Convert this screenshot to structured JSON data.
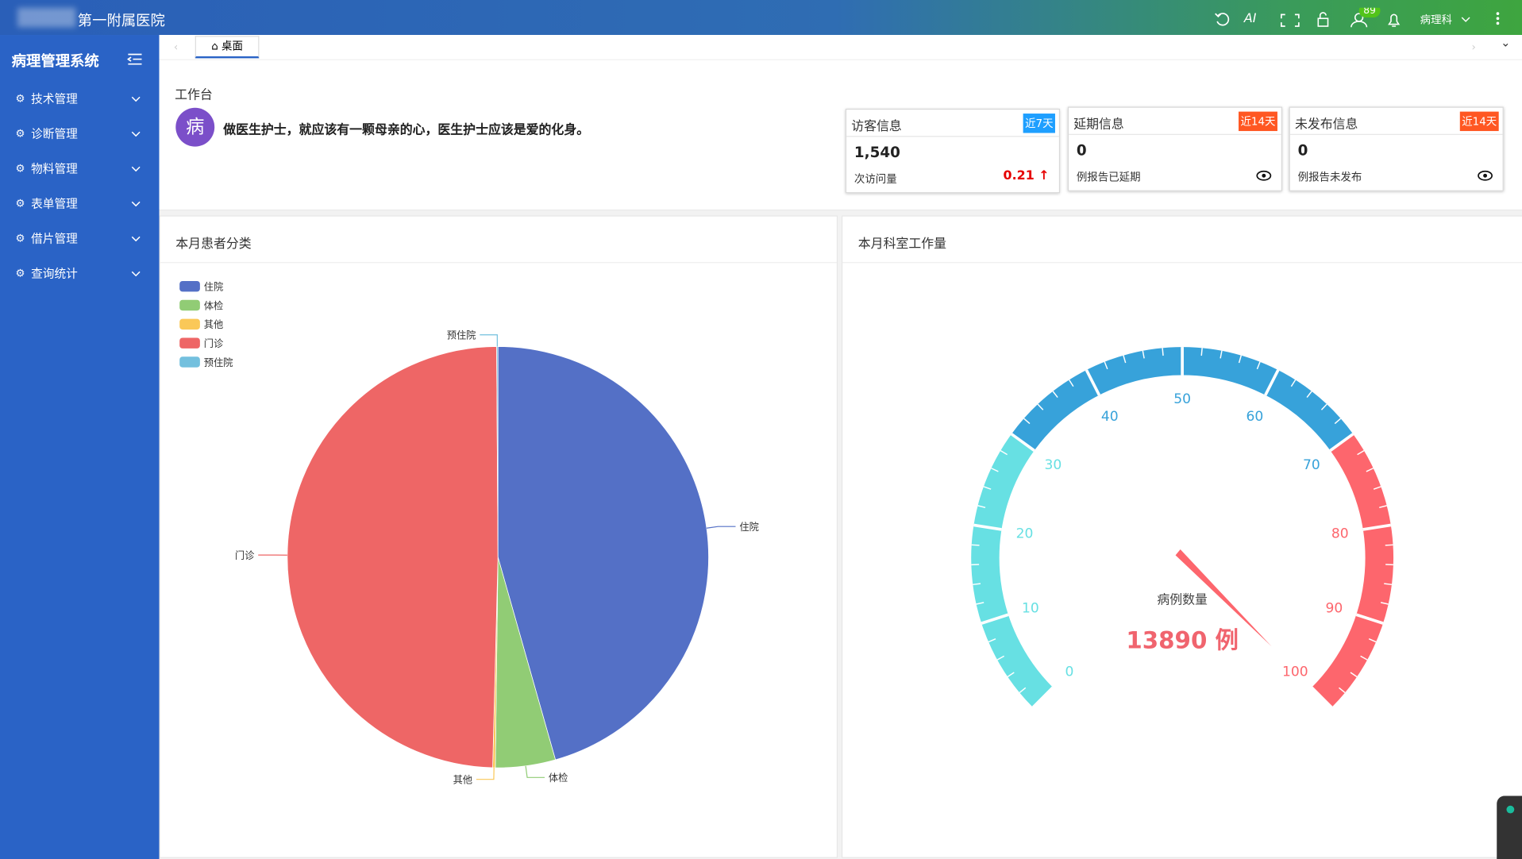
{
  "header": {
    "hospital": "第一附属医院",
    "ai": "AI",
    "badge": "89",
    "department": "病理科"
  },
  "sidebar": {
    "title": "病理管理系统",
    "menu": [
      "技术管理",
      "诊断管理",
      "物料管理",
      "表单管理",
      "借片管理",
      "查询统计"
    ]
  },
  "tabs": [
    "桌面"
  ],
  "workbench": {
    "title": "工作台",
    "avatar": "病",
    "motto": "做医生护士，就应该有一颗母亲的心，医生护士应该是爱的化身。"
  },
  "cards": [
    {
      "title": "访客信息",
      "tag": "近7天",
      "value": "1,540",
      "label": "次访问量",
      "change": "0.21"
    },
    {
      "title": "延期信息",
      "tag": "近14天",
      "value": "0",
      "label": "例报告已延期"
    },
    {
      "title": "未发布信息",
      "tag": "近14天",
      "value": "0",
      "label": "例报告未发布"
    }
  ],
  "chart_data": [
    {
      "type": "pie",
      "title": "本月患者分类",
      "categories": [
        "住院",
        "体检",
        "其他",
        "门诊",
        "预住院"
      ],
      "values": [
        45.6,
        4.6,
        0.2,
        49.5,
        0.1
      ],
      "colors": [
        "#5470c6",
        "#91cc75",
        "#fac858",
        "#ee6666",
        "#73c0de"
      ],
      "legend": "top-left"
    },
    {
      "type": "gauge",
      "title": "本月科室工作量",
      "ylim": [
        0,
        100
      ],
      "yticks": [
        0,
        10,
        20,
        30,
        40,
        50,
        60,
        70,
        80,
        90,
        100
      ],
      "bands": [
        {
          "to": 30,
          "color": "#67e0e3"
        },
        {
          "to": 70,
          "color": "#37a2da"
        },
        {
          "to": 100,
          "color": "#fd666d"
        }
      ],
      "label": "病例数量",
      "detail": "13890 例"
    }
  ]
}
